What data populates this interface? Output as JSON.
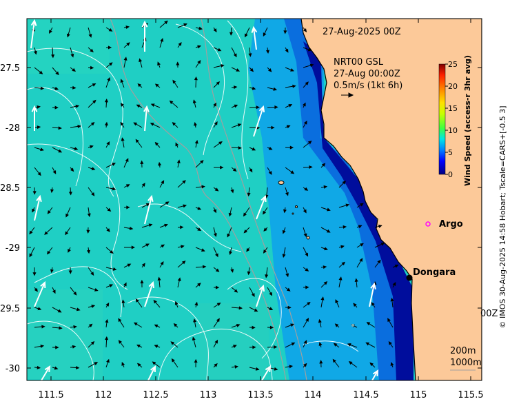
{
  "map": {
    "date_title": "27-Aug-2025 00Z",
    "product": "NRT00 GSL",
    "timestamp": "27-Aug 00:00Z",
    "scale_arrow_label": "0.5m/s (1kt 6h)",
    "partial_label": "00Z",
    "contours": [
      "200m",
      "1000m"
    ],
    "credit": "© IMOS 30-Aug-2025 14:58 Hobart; Tscale=CARS+[-0.5 3]",
    "places": [
      {
        "name": "Argo",
        "marker": "circle-magenta"
      },
      {
        "name": "Dongara",
        "marker": "dot-black"
      }
    ],
    "x_ticks": [
      "111.5",
      "112",
      "112.5",
      "113",
      "113.5",
      "114",
      "114.5",
      "115",
      "115.5"
    ],
    "y_ticks": [
      "-27.5",
      "-28",
      "-28.5",
      "-29",
      "-29.5",
      "-30"
    ],
    "colors": {
      "land": "#fcc999",
      "ocean": "#1fcfc4",
      "near_coast": "#0a7de0",
      "coast_deep": "#000a96"
    }
  },
  "colorbar": {
    "title": "Wind Speed (access-r 3hr avg)",
    "ticks": [
      "25",
      "20",
      "15",
      "10",
      "5",
      "0"
    ]
  }
}
